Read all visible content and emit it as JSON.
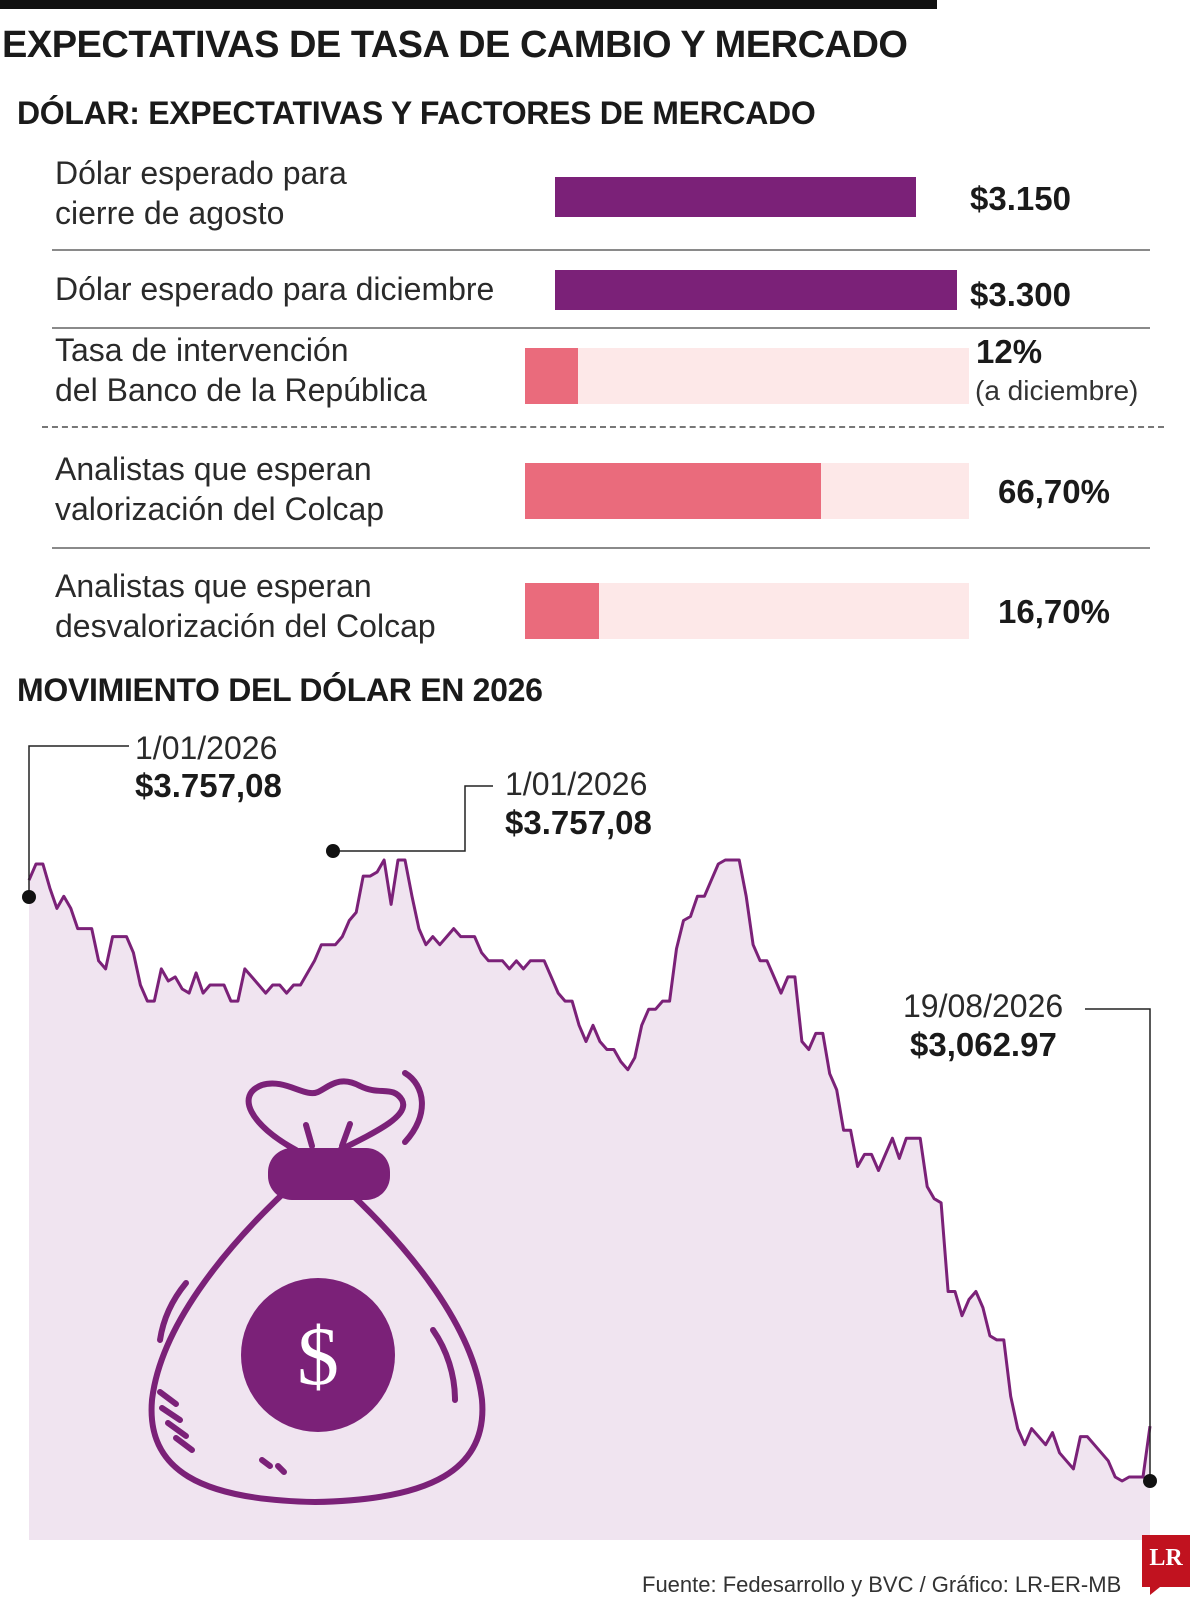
{
  "header": {
    "title": "EXPECTATIVAS DE TASA DE CAMBIO Y MERCADO",
    "subtitle": "DÓLAR: EXPECTATIVAS Y FACTORES DE MERCADO"
  },
  "bars": {
    "rows": [
      {
        "label": "Dólar esperado para\ncierre de agosto",
        "value": "$3.150",
        "number": 3150,
        "note": ""
      },
      {
        "label": "Dólar esperado para diciembre",
        "value": "$3.300",
        "number": 3300,
        "note": ""
      },
      {
        "label": "Tasa de intervención\ndel Banco de la República",
        "value": "12%",
        "number": 12,
        "fraction": 0.12,
        "note": "(a diciembre)"
      },
      {
        "label": "Analistas que esperan\nvalorización del Colcap",
        "value": "66,70%",
        "number": 66.7,
        "fraction": 0.667,
        "note": ""
      },
      {
        "label": "Analistas que esperan\ndesvalorización del Colcap",
        "value": "16,70%",
        "number": 16.7,
        "fraction": 0.167,
        "note": ""
      }
    ]
  },
  "chart_section": {
    "title": "MOVIMIENTO DEL DÓLAR EN 2026",
    "annotations": [
      {
        "date": "1/01/2026",
        "value": "$3.757,08"
      },
      {
        "date": "1/01/2026",
        "value": "$3.757,08"
      },
      {
        "date": "19/08/2026",
        "value": "$3,062.97"
      }
    ]
  },
  "chart_data": {
    "type": "area",
    "title": "MOVIMIENTO DEL DÓLAR EN 2026",
    "xlabel": "",
    "ylabel": "",
    "x_range": [
      "1/01/2026",
      "19/08/2026"
    ],
    "ylim": [
      2960,
      3800
    ],
    "series": [
      {
        "values": [
          3740,
          3760,
          3760,
          3730,
          3705,
          3720,
          3705,
          3680,
          3680,
          3680,
          3640,
          3630,
          3670,
          3670,
          3670,
          3650,
          3610,
          3590,
          3590,
          3630,
          3615,
          3620,
          3605,
          3600,
          3625,
          3600,
          3610,
          3610,
          3610,
          3590,
          3590,
          3630,
          3620,
          3610,
          3600,
          3610,
          3610,
          3600,
          3610,
          3610,
          3625,
          3640,
          3660,
          3660,
          3660,
          3670,
          3690,
          3700,
          3745,
          3745,
          3750,
          3765,
          3710,
          3765,
          3765,
          3720,
          3680,
          3660,
          3670,
          3660,
          3670,
          3680,
          3670,
          3670,
          3670,
          3650,
          3640,
          3640,
          3640,
          3630,
          3640,
          3630,
          3640,
          3640,
          3640,
          3620,
          3600,
          3590,
          3590,
          3560,
          3540,
          3560,
          3540,
          3530,
          3530,
          3515,
          3505,
          3520,
          3560,
          3580,
          3580,
          3590,
          3590,
          3655,
          3690,
          3695,
          3720,
          3720,
          3740,
          3760,
          3765,
          3765,
          3765,
          3720,
          3660,
          3640,
          3640,
          3620,
          3600,
          3620,
          3620,
          3540,
          3530,
          3550,
          3550,
          3500,
          3480,
          3430,
          3430,
          3385,
          3400,
          3400,
          3380,
          3400,
          3420,
          3395,
          3420,
          3420,
          3420,
          3360,
          3345,
          3340,
          3230,
          3230,
          3200,
          3220,
          3230,
          3210,
          3175,
          3170,
          3170,
          3100,
          3060,
          3040,
          3060,
          3050,
          3040,
          3055,
          3030,
          3020,
          3010,
          3050,
          3050,
          3040,
          3030,
          3020,
          3000,
          2995,
          3000,
          3000,
          3000,
          3062.97
        ]
      }
    ]
  },
  "colors": {
    "accent_purple": "#7b2178",
    "accent_pink": "#ea6b7c",
    "track_pink": "#fde8e8",
    "area_fill": "#f0e4f0",
    "logo_red": "#c1121f"
  },
  "icons": [
    "money-bag-icon",
    "dollar-icon"
  ],
  "footer": {
    "source": "Fuente: Fedesarrollo y BVC / Gráfico: LR-ER-MB",
    "logo": "LR"
  }
}
